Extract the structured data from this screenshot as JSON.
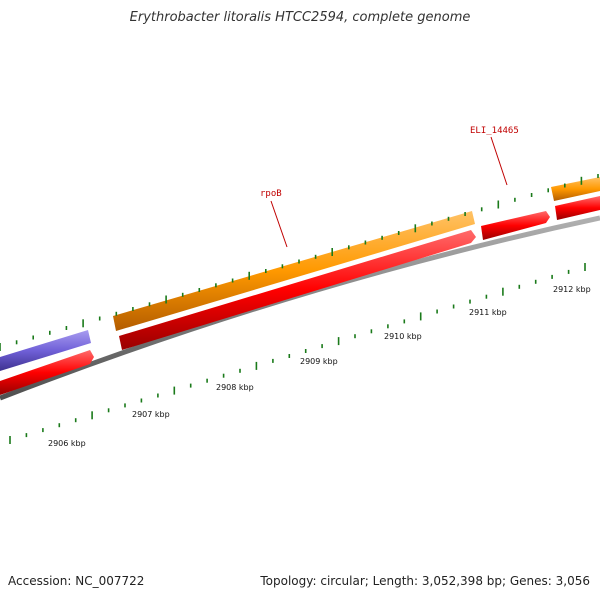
{
  "title": "Erythrobacter litoralis HTCC2594, complete genome",
  "footer": {
    "accession": "Accession: NC_007722",
    "topology": "Topology: circular; Length: 3,052,398 bp; Genes: 3,056"
  },
  "gene_labels": [
    {
      "id": "rpoB",
      "text": "rpoB"
    },
    {
      "id": "eli",
      "text": "ELI_14465"
    }
  ],
  "ruler_labels": [
    "2906 kbp",
    "2907 kbp",
    "2908 kbp",
    "2909 kbp",
    "2910 kbp",
    "2911 kbp",
    "2912 kbp"
  ],
  "colors": {
    "forward_gene": "#ff9a00",
    "reverse_gene": "#ff0000",
    "other_gene": "#7a6ad8",
    "backbone": "#808080",
    "ticks": "#1a7a1a",
    "label": "#c00000"
  }
}
